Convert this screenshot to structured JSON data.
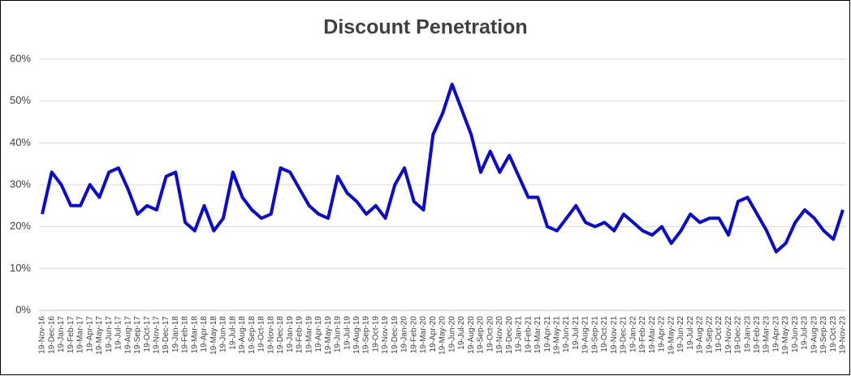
{
  "chart_data": {
    "type": "line",
    "title": "Discount Penetration",
    "categories": [
      "19-Nov-16",
      "19-Dec-16",
      "19-Jan-17",
      "19-Feb-17",
      "19-Mar-17",
      "19-Apr-17",
      "19-May-17",
      "19-Jun-17",
      "19-Jul-17",
      "19-Aug-17",
      "19-Sep-17",
      "19-Oct-17",
      "19-Nov-17",
      "19-Dec-17",
      "19-Jan-18",
      "19-Feb-18",
      "19-Mar-18",
      "19-Apr-18",
      "19-May-18",
      "19-Jun-18",
      "19-Jul-18",
      "19-Aug-18",
      "19-Sep-18",
      "19-Oct-18",
      "19-Nov-18",
      "19-Dec-18",
      "19-Jan-19",
      "19-Feb-19",
      "19-Mar-19",
      "19-Apr-19",
      "19-May-19",
      "19-Jun-19",
      "19-Jul-19",
      "19-Aug-19",
      "19-Sep-19",
      "19-Oct-19",
      "19-Nov-19",
      "19-Dec-19",
      "19-Jan-20",
      "19-Feb-20",
      "19-Mar-20",
      "19-Apr-20",
      "19-May-20",
      "19-Jun-20",
      "19-Jul-20",
      "19-Aug-20",
      "19-Sep-20",
      "19-Oct-20",
      "19-Nov-20",
      "19-Dec-20",
      "19-Jan-21",
      "19-Feb-21",
      "19-Mar-21",
      "19-Apr-21",
      "19-May-21",
      "19-Jun-21",
      "19-Jul-21",
      "19-Aug-21",
      "19-Sep-21",
      "19-Oct-21",
      "19-Nov-21",
      "19-Dec-21",
      "19-Jan-22",
      "19-Feb-22",
      "19-Mar-22",
      "19-Apr-22",
      "19-May-22",
      "19-Jun-22",
      "19-Jul-22",
      "19-Aug-22",
      "19-Sep-22",
      "19-Oct-22",
      "19-Nov-22",
      "19-Dec-22",
      "19-Jan-23",
      "19-Feb-23",
      "19-Mar-23",
      "19-Apr-23",
      "19-May-23",
      "19-Jun-23",
      "19-Jul-23",
      "19-Aug-23",
      "19-Sep-23",
      "19-Oct-23",
      "19-Nov-23"
    ],
    "series": [
      {
        "name": "Discount Penetration",
        "color": "#0a0ad2",
        "values": [
          23,
          33,
          30,
          25,
          25,
          30,
          27,
          33,
          34,
          29,
          23,
          25,
          24,
          32,
          33,
          21,
          19,
          25,
          19,
          22,
          33,
          27,
          24,
          22,
          23,
          34,
          33,
          29,
          25,
          23,
          22,
          32,
          28,
          26,
          23,
          25,
          22,
          30,
          34,
          26,
          24,
          42,
          47,
          54,
          48,
          42,
          33,
          38,
          33,
          37,
          32,
          27,
          27,
          20,
          19,
          22,
          25,
          21,
          20,
          21,
          19,
          23,
          21,
          19,
          18,
          20,
          16,
          19,
          23,
          21,
          22,
          22,
          18,
          26,
          27,
          23,
          19,
          14,
          16,
          21,
          24,
          22,
          19,
          17,
          24
        ]
      }
    ],
    "ylim": [
      0,
      60
    ],
    "yticks": [
      {
        "value": 0,
        "label": "0%"
      },
      {
        "value": 10,
        "label": "10%"
      },
      {
        "value": 20,
        "label": "20%"
      },
      {
        "value": 30,
        "label": "30%"
      },
      {
        "value": 40,
        "label": "40%"
      },
      {
        "value": 50,
        "label": "50%"
      },
      {
        "value": 60,
        "label": "60%"
      }
    ],
    "grid": true
  }
}
